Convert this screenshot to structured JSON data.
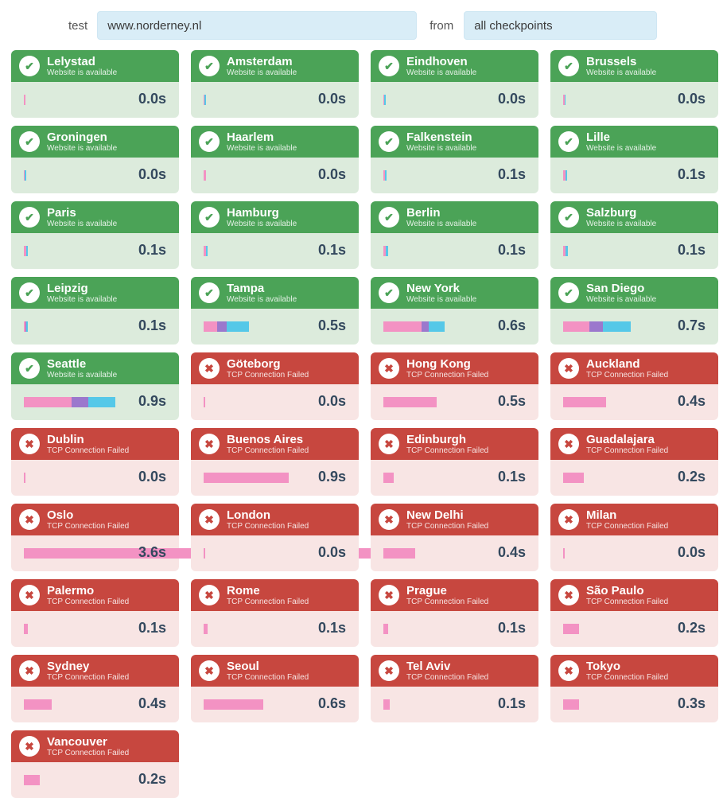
{
  "form": {
    "test_label": "test",
    "url_value": "www.norderney.nl",
    "from_label": "from",
    "checkpoints_value": "all checkpoints"
  },
  "statuses": {
    "up": {
      "label": "Website is available",
      "icon": "check-icon",
      "glyph": "✔",
      "header_color": "#4ba357",
      "body_color": "#dcebdc"
    },
    "down": {
      "label": "TCP Connection Failed",
      "icon": "x-icon",
      "glyph": "✖",
      "header_color": "#c7473f",
      "body_color": "#f8e5e4"
    }
  },
  "bar_colors": {
    "pink": "#f392c3",
    "purple": "#9b78cd",
    "blue": "#55c8e8"
  },
  "time_text_color": "#34495e",
  "cards": [
    {
      "name": "Lelystad",
      "status": "up",
      "time": "0.0s",
      "segments": [
        [
          "pink",
          2
        ]
      ]
    },
    {
      "name": "Amsterdam",
      "status": "up",
      "time": "0.0s",
      "segments": [
        [
          "pink",
          1
        ],
        [
          "blue",
          2
        ]
      ]
    },
    {
      "name": "Eindhoven",
      "status": "up",
      "time": "0.0s",
      "segments": [
        [
          "pink",
          1
        ],
        [
          "blue",
          2
        ]
      ]
    },
    {
      "name": "Brussels",
      "status": "up",
      "time": "0.0s",
      "segments": [
        [
          "pink",
          2
        ],
        [
          "blue",
          1
        ]
      ]
    },
    {
      "name": "Groningen",
      "status": "up",
      "time": "0.0s",
      "segments": [
        [
          "pink",
          1
        ],
        [
          "blue",
          2
        ]
      ]
    },
    {
      "name": "Haarlem",
      "status": "up",
      "time": "0.0s",
      "segments": [
        [
          "pink",
          3
        ]
      ]
    },
    {
      "name": "Falkenstein",
      "status": "up",
      "time": "0.1s",
      "segments": [
        [
          "pink",
          2
        ],
        [
          "blue",
          2
        ]
      ]
    },
    {
      "name": "Lille",
      "status": "up",
      "time": "0.1s",
      "segments": [
        [
          "pink",
          3
        ],
        [
          "blue",
          2
        ]
      ]
    },
    {
      "name": "Paris",
      "status": "up",
      "time": "0.1s",
      "segments": [
        [
          "pink",
          3
        ],
        [
          "blue",
          2
        ]
      ]
    },
    {
      "name": "Hamburg",
      "status": "up",
      "time": "0.1s",
      "segments": [
        [
          "pink",
          3
        ],
        [
          "blue",
          2
        ]
      ]
    },
    {
      "name": "Berlin",
      "status": "up",
      "time": "0.1s",
      "segments": [
        [
          "pink",
          3
        ],
        [
          "blue",
          3
        ]
      ]
    },
    {
      "name": "Salzburg",
      "status": "up",
      "time": "0.1s",
      "segments": [
        [
          "pink",
          3
        ],
        [
          "blue",
          3
        ]
      ]
    },
    {
      "name": "Leipzig",
      "status": "up",
      "time": "0.1s",
      "segments": [
        [
          "pink",
          2
        ],
        [
          "purple",
          1
        ],
        [
          "blue",
          2
        ]
      ]
    },
    {
      "name": "Tampa",
      "status": "up",
      "time": "0.5s",
      "segments": [
        [
          "pink",
          17
        ],
        [
          "purple",
          12
        ],
        [
          "blue",
          28
        ]
      ]
    },
    {
      "name": "New York",
      "status": "up",
      "time": "0.6s",
      "segments": [
        [
          "pink",
          48
        ],
        [
          "purple",
          9
        ],
        [
          "blue",
          20
        ]
      ]
    },
    {
      "name": "San Diego",
      "status": "up",
      "time": "0.7s",
      "segments": [
        [
          "pink",
          33
        ],
        [
          "purple",
          17
        ],
        [
          "blue",
          35
        ]
      ]
    },
    {
      "name": "Seattle",
      "status": "up",
      "time": "0.9s",
      "segments": [
        [
          "pink",
          60
        ],
        [
          "purple",
          21
        ],
        [
          "blue",
          34
        ]
      ]
    },
    {
      "name": "Göteborg",
      "status": "down",
      "time": "0.0s",
      "segments": [
        [
          "pink",
          2
        ]
      ]
    },
    {
      "name": "Hong Kong",
      "status": "down",
      "time": "0.5s",
      "segments": [
        [
          "pink",
          67
        ]
      ]
    },
    {
      "name": "Auckland",
      "status": "down",
      "time": "0.4s",
      "segments": [
        [
          "pink",
          54
        ]
      ]
    },
    {
      "name": "Dublin",
      "status": "down",
      "time": "0.0s",
      "segments": [
        [
          "pink",
          2
        ]
      ]
    },
    {
      "name": "Buenos Aires",
      "status": "down",
      "time": "0.9s",
      "segments": [
        [
          "pink",
          107
        ]
      ]
    },
    {
      "name": "Edinburgh",
      "status": "down",
      "time": "0.1s",
      "segments": [
        [
          "pink",
          13
        ]
      ]
    },
    {
      "name": "Guadalajara",
      "status": "down",
      "time": "0.2s",
      "segments": [
        [
          "pink",
          26
        ]
      ]
    },
    {
      "name": "Oslo",
      "status": "down",
      "time": "3.6s",
      "segments": [
        [
          "pink",
          460
        ]
      ]
    },
    {
      "name": "London",
      "status": "down",
      "time": "0.0s",
      "segments": [
        [
          "pink",
          2
        ]
      ]
    },
    {
      "name": "New Delhi",
      "status": "down",
      "time": "0.4s",
      "segments": [
        [
          "pink",
          40
        ]
      ]
    },
    {
      "name": "Milan",
      "status": "down",
      "time": "0.0s",
      "segments": [
        [
          "pink",
          2
        ]
      ]
    },
    {
      "name": "Palermo",
      "status": "down",
      "time": "0.1s",
      "segments": [
        [
          "pink",
          5
        ]
      ]
    },
    {
      "name": "Rome",
      "status": "down",
      "time": "0.1s",
      "segments": [
        [
          "pink",
          5
        ]
      ]
    },
    {
      "name": "Prague",
      "status": "down",
      "time": "0.1s",
      "segments": [
        [
          "pink",
          6
        ]
      ]
    },
    {
      "name": "São Paulo",
      "status": "down",
      "time": "0.2s",
      "segments": [
        [
          "pink",
          20
        ]
      ]
    },
    {
      "name": "Sydney",
      "status": "down",
      "time": "0.4s",
      "segments": [
        [
          "pink",
          35
        ]
      ]
    },
    {
      "name": "Seoul",
      "status": "down",
      "time": "0.6s",
      "segments": [
        [
          "pink",
          75
        ]
      ]
    },
    {
      "name": "Tel Aviv",
      "status": "down",
      "time": "0.1s",
      "segments": [
        [
          "pink",
          8
        ]
      ]
    },
    {
      "name": "Tokyo",
      "status": "down",
      "time": "0.3s",
      "segments": [
        [
          "pink",
          20
        ]
      ]
    },
    {
      "name": "Vancouver",
      "status": "down",
      "time": "0.2s",
      "segments": [
        [
          "pink",
          20
        ]
      ]
    }
  ]
}
